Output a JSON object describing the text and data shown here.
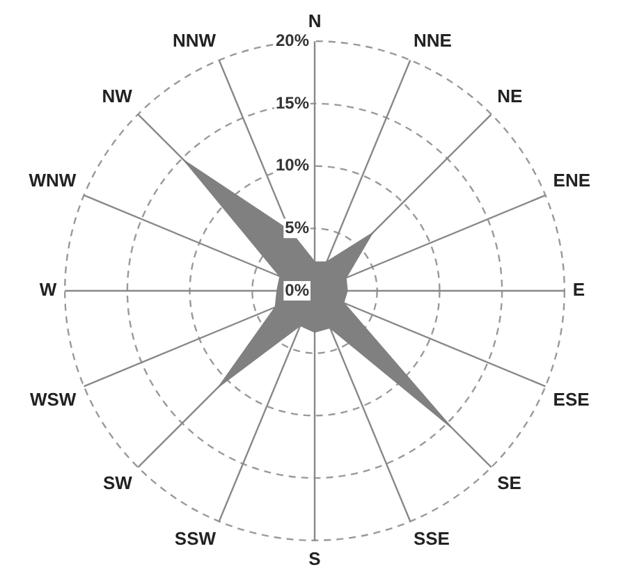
{
  "chart_data": {
    "type": "radar",
    "categories": [
      "N",
      "NNE",
      "NE",
      "ENE",
      "E",
      "ESE",
      "SE",
      "SSE",
      "S",
      "SSW",
      "SW",
      "WSW",
      "W",
      "WNW",
      "NW",
      "NNW"
    ],
    "series": [
      {
        "color": "#808080",
        "values": [
          2.3,
          2.5,
          6.5,
          2.7,
          2.6,
          2.5,
          15.4,
          3.2,
          3.3,
          3,
          10.8,
          3.4,
          3,
          3,
          14.7,
          5.2
        ]
      }
    ],
    "ylim": [
      0,
      20
    ],
    "yticks": [
      {
        "value": 0,
        "label": "0%"
      },
      {
        "value": 5,
        "label": "5%"
      },
      {
        "value": 10,
        "label": "10%"
      },
      {
        "value": 15,
        "label": "15%"
      },
      {
        "value": 20,
        "label": "20%"
      }
    ],
    "grid": true,
    "legend": false,
    "marker": "none"
  }
}
